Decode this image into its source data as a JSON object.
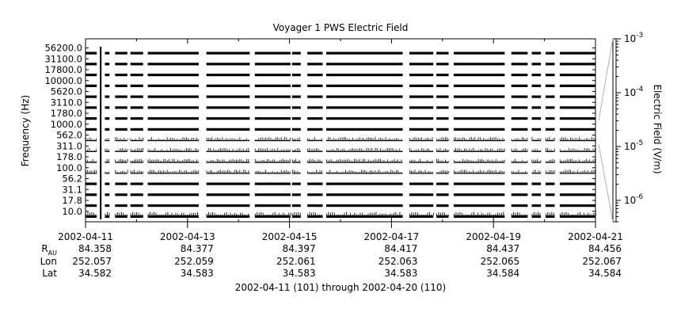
{
  "chart_data": {
    "type": "heatmap",
    "title": "Voyager 1 PWS Electric Field",
    "ylabel": "Frequency (Hz)",
    "colorbar_label": "Electric Field (V/m)",
    "colorbar_scale": "log",
    "colorbar_range": [
      4e-07,
      0.001
    ],
    "colorbar_ticks": [
      {
        "base": "10",
        "exp": "-3",
        "value": 0.001
      },
      {
        "base": "10",
        "exp": "-4",
        "value": 0.0001
      },
      {
        "base": "10",
        "exp": "-5",
        "value": 1e-05
      },
      {
        "base": "10",
        "exp": "-6",
        "value": 1e-06
      }
    ],
    "colors": {
      "intense": "#000000",
      "background": "#ffffff",
      "frame": "#000000",
      "colorbar_connector": "#b0b0b0"
    },
    "y_channels": [
      "10.0",
      "17.8",
      "31.1",
      "56.2",
      "100.0",
      "178.0",
      "311.0",
      "562.0",
      "1000.0",
      "1780.0",
      "3110.0",
      "5620.0",
      "10000.0",
      "17800.0",
      "31100.0",
      "56200.0"
    ],
    "strong_channels": [
      "10.0",
      "17.8",
      "31.1",
      "56.2",
      "1000.0",
      "1780.0",
      "3110.0",
      "5620.0",
      "10000.0",
      "17800.0",
      "31100.0",
      "56200.0"
    ],
    "weak_channels": [
      "100.0",
      "178.0",
      "311.0",
      "562.0"
    ],
    "x_range_days": [
      0,
      10
    ],
    "data_segments_days": [
      [
        0.0,
        0.22
      ],
      [
        0.38,
        0.47
      ],
      [
        0.58,
        0.82
      ],
      [
        0.88,
        1.13
      ],
      [
        1.22,
        2.22
      ],
      [
        2.37,
        3.22
      ],
      [
        3.32,
        4.02
      ],
      [
        4.05,
        4.22
      ],
      [
        4.35,
        4.65
      ],
      [
        4.72,
        6.22
      ],
      [
        6.35,
        6.82
      ],
      [
        6.88,
        7.12
      ],
      [
        7.22,
        8.22
      ],
      [
        8.35,
        8.67
      ],
      [
        8.75,
        8.93
      ],
      [
        9.02,
        9.2
      ],
      [
        9.3,
        10.0
      ]
    ],
    "burst_days": [
      0.29,
      0.3
    ],
    "x_ticks": [
      "2002-04-11",
      "2002-04-13",
      "2002-04-15",
      "2002-04-17",
      "2002-04-19",
      "2002-04-21"
    ],
    "ephemeris": {
      "rows": [
        {
          "label": "R",
          "sub": "AU",
          "values": [
            "84.358",
            "84.377",
            "84.397",
            "84.417",
            "84.437",
            "84.456"
          ]
        },
        {
          "label": "Lon",
          "sub": "",
          "values": [
            "252.057",
            "252.059",
            "252.061",
            "252.063",
            "252.065",
            "252.067"
          ]
        },
        {
          "label": "Lat",
          "sub": "",
          "values": [
            "34.582",
            "34.583",
            "34.583",
            "34.583",
            "34.584",
            "34.584"
          ]
        }
      ]
    },
    "xlabel": "2002-04-11 (101) through 2002-04-20 (110)"
  }
}
